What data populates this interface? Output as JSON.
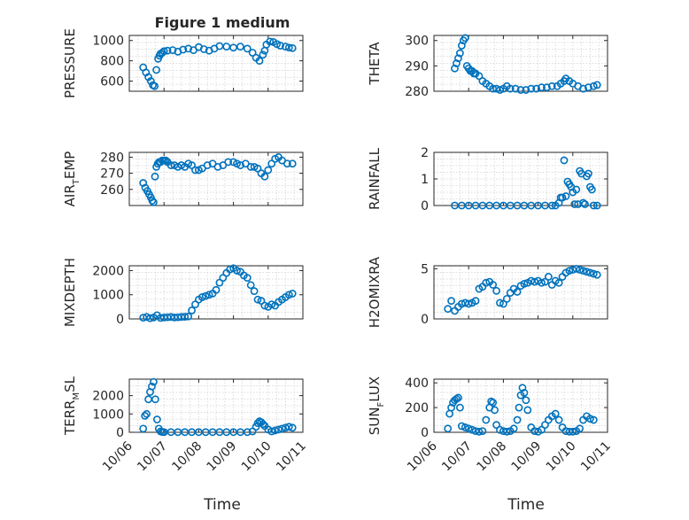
{
  "figure": {
    "title": "Figure 1 medium",
    "marker_color": "#0072BD",
    "xlabel": "Time"
  },
  "chart_data": [
    {
      "type": "scatter",
      "panel": "PRESSURE",
      "ylabel": "PRESSURE",
      "ylabel_sub": "",
      "ylim": [
        500,
        1050
      ],
      "yticks": [
        600,
        800,
        1000
      ],
      "ytick_labels": [
        "600",
        "800",
        "1000"
      ],
      "xlim": [
        0,
        5
      ],
      "xticks": [
        0,
        1,
        2,
        3,
        4,
        5
      ],
      "xtick_labels": [
        "10/06",
        "10/07",
        "10/08",
        "10/09",
        "10/10",
        "10/11"
      ],
      "show_xticklabels": false,
      "title": "Figure 1 medium",
      "x": [
        0.4,
        0.48,
        0.55,
        0.62,
        0.68,
        0.73,
        0.78,
        0.83,
        0.87,
        0.9,
        0.95,
        1.0,
        1.1,
        1.25,
        1.4,
        1.55,
        1.7,
        1.85,
        2.0,
        2.15,
        2.3,
        2.45,
        2.6,
        2.8,
        3.0,
        3.2,
        3.4,
        3.55,
        3.65,
        3.75,
        3.85,
        3.9,
        3.95,
        4.05,
        4.15,
        4.25,
        4.35,
        4.5,
        4.6,
        4.7
      ],
      "y": [
        735,
        685,
        640,
        600,
        560,
        550,
        710,
        820,
        850,
        870,
        880,
        895,
        900,
        905,
        890,
        910,
        920,
        905,
        935,
        915,
        900,
        920,
        945,
        940,
        930,
        940,
        920,
        880,
        830,
        800,
        860,
        900,
        960,
        990,
        985,
        965,
        950,
        940,
        930,
        925
      ]
    },
    {
      "type": "scatter",
      "panel": "THETA",
      "ylabel": "THETA",
      "ylabel_sub": "",
      "ylim": [
        280,
        302
      ],
      "yticks": [
        280,
        290,
        300
      ],
      "ytick_labels": [
        "280",
        "290",
        "300"
      ],
      "xlim": [
        0,
        5
      ],
      "xticks": [
        0,
        1,
        2,
        3,
        4,
        5
      ],
      "xtick_labels": [
        "10/06",
        "10/07",
        "10/08",
        "10/09",
        "10/10",
        "10/11"
      ],
      "show_xticklabels": false,
      "x": [
        0.6,
        0.65,
        0.7,
        0.75,
        0.8,
        0.85,
        0.9,
        0.95,
        1.0,
        1.05,
        1.1,
        1.15,
        1.2,
        1.3,
        1.4,
        1.5,
        1.6,
        1.7,
        1.8,
        1.9,
        2.0,
        2.1,
        2.2,
        2.35,
        2.5,
        2.65,
        2.8,
        2.95,
        3.1,
        3.25,
        3.4,
        3.55,
        3.65,
        3.75,
        3.8,
        3.9,
        4.0,
        4.15,
        4.3,
        4.45,
        4.6,
        4.7
      ],
      "y": [
        289,
        291,
        293,
        295,
        298,
        300,
        301,
        290,
        289,
        288,
        288,
        287,
        287,
        286,
        284,
        283,
        282,
        281,
        281,
        280.5,
        281,
        282,
        281,
        281,
        280.5,
        280.5,
        281,
        281,
        281.5,
        281.5,
        282,
        282,
        283,
        284,
        285,
        284,
        283,
        282,
        281,
        281.5,
        282,
        282.5
      ]
    },
    {
      "type": "scatter",
      "panel": "AIR_TEMP",
      "ylabel": "AIR",
      "ylabel_sub": "T",
      "ylabel_tail": "EMP",
      "ylim": [
        250,
        283
      ],
      "yticks": [
        260,
        270,
        280
      ],
      "ytick_labels": [
        "260",
        "270",
        "280"
      ],
      "xlim": [
        0,
        5
      ],
      "xticks": [
        0,
        1,
        2,
        3,
        4,
        5
      ],
      "xtick_labels": [
        "10/06",
        "10/07",
        "10/08",
        "10/09",
        "10/10",
        "10/11"
      ],
      "show_xticklabels": false,
      "x": [
        0.4,
        0.46,
        0.52,
        0.57,
        0.62,
        0.66,
        0.7,
        0.74,
        0.78,
        0.82,
        0.86,
        0.9,
        0.95,
        1.0,
        1.05,
        1.1,
        1.2,
        1.3,
        1.4,
        1.5,
        1.6,
        1.7,
        1.8,
        1.9,
        2.0,
        2.1,
        2.25,
        2.4,
        2.55,
        2.7,
        2.85,
        3.0,
        3.1,
        3.2,
        3.35,
        3.5,
        3.6,
        3.7,
        3.8,
        3.9,
        4.0,
        4.1,
        4.2,
        4.3,
        4.4,
        4.55,
        4.7
      ],
      "y": [
        264,
        261,
        259,
        257,
        255,
        253,
        252,
        268,
        274,
        276,
        277,
        277,
        278,
        278,
        278,
        277,
        275,
        275,
        274,
        275,
        274,
        276,
        275,
        272,
        272,
        273,
        275,
        276,
        274,
        275,
        277,
        277,
        276,
        275,
        276,
        274,
        274,
        273,
        270,
        268,
        272,
        276,
        279,
        280,
        278,
        276,
        276
      ]
    },
    {
      "type": "scatter",
      "panel": "RAINFALL",
      "ylabel": "RAINFALL",
      "ylabel_sub": "",
      "ylim": [
        0,
        2
      ],
      "yticks": [
        0,
        1,
        2
      ],
      "ytick_labels": [
        "0",
        "1",
        "2"
      ],
      "xlim": [
        0,
        5
      ],
      "xticks": [
        0,
        1,
        2,
        3,
        4,
        5
      ],
      "xtick_labels": [
        "10/06",
        "10/07",
        "10/08",
        "10/09",
        "10/10",
        "10/11"
      ],
      "show_xticklabels": false,
      "x": [
        0.6,
        0.8,
        1.0,
        1.2,
        1.4,
        1.6,
        1.8,
        2.0,
        2.2,
        2.4,
        2.6,
        2.8,
        3.0,
        3.2,
        3.4,
        3.5,
        3.6,
        3.65,
        3.7,
        3.75,
        3.8,
        3.85,
        3.9,
        3.95,
        4.0,
        4.05,
        4.1,
        4.15,
        4.2,
        4.25,
        4.3,
        4.35,
        4.4,
        4.45,
        4.5,
        4.55,
        4.6,
        4.7
      ],
      "y": [
        0,
        0,
        0,
        0,
        0,
        0,
        0,
        0,
        0,
        0,
        0,
        0,
        0,
        0,
        0,
        0,
        0.1,
        0.3,
        0.3,
        1.7,
        0.35,
        0.9,
        0.8,
        0.7,
        0.5,
        0.05,
        0.6,
        0.05,
        1.3,
        1.2,
        0.1,
        0.05,
        1.1,
        1.2,
        0.7,
        0.6,
        0,
        0
      ]
    },
    {
      "type": "scatter",
      "panel": "MIXDEPTH",
      "ylabel": "MIXDEPTH",
      "ylabel_sub": "",
      "ylim": [
        0,
        2200
      ],
      "yticks": [
        0,
        1000,
        2000
      ],
      "ytick_labels": [
        "0",
        "1000",
        "2000"
      ],
      "xlim": [
        0,
        5
      ],
      "xticks": [
        0,
        1,
        2,
        3,
        4,
        5
      ],
      "xtick_labels": [
        "10/06",
        "10/07",
        "10/08",
        "10/09",
        "10/10",
        "10/11"
      ],
      "show_xticklabels": false,
      "x": [
        0.4,
        0.5,
        0.6,
        0.7,
        0.8,
        0.9,
        1.0,
        1.1,
        1.2,
        1.3,
        1.4,
        1.5,
        1.6,
        1.7,
        1.8,
        1.9,
        2.0,
        2.1,
        2.2,
        2.3,
        2.4,
        2.5,
        2.6,
        2.7,
        2.8,
        2.9,
        3.0,
        3.1,
        3.2,
        3.3,
        3.4,
        3.5,
        3.6,
        3.7,
        3.8,
        3.9,
        4.0,
        4.1,
        4.2,
        4.3,
        4.4,
        4.5,
        4.6,
        4.7
      ],
      "y": [
        50,
        80,
        30,
        60,
        150,
        40,
        60,
        70,
        80,
        60,
        70,
        80,
        90,
        100,
        350,
        600,
        800,
        900,
        950,
        1000,
        1050,
        1200,
        1500,
        1700,
        1900,
        2050,
        2100,
        2000,
        1950,
        1800,
        1700,
        1400,
        1150,
        800,
        750,
        550,
        500,
        600,
        550,
        700,
        800,
        900,
        1000,
        1050
      ]
    },
    {
      "type": "scatter",
      "panel": "H2OMIXRA",
      "ylabel": "H2OMIXRA",
      "ylabel_sub": "",
      "ylim": [
        0,
        5.3
      ],
      "yticks": [
        0,
        5
      ],
      "ytick_labels": [
        "0",
        "5"
      ],
      "xlim": [
        0,
        5
      ],
      "xticks": [
        0,
        1,
        2,
        3,
        4,
        5
      ],
      "xtick_labels": [
        "10/06",
        "10/07",
        "10/08",
        "10/09",
        "10/10",
        "10/11"
      ],
      "show_xticklabels": false,
      "x": [
        0.4,
        0.5,
        0.6,
        0.7,
        0.8,
        0.9,
        1.0,
        1.1,
        1.2,
        1.3,
        1.4,
        1.5,
        1.6,
        1.7,
        1.8,
        1.9,
        2.0,
        2.1,
        2.2,
        2.3,
        2.4,
        2.5,
        2.6,
        2.7,
        2.8,
        2.9,
        3.0,
        3.1,
        3.2,
        3.3,
        3.4,
        3.5,
        3.6,
        3.7,
        3.8,
        3.9,
        4.0,
        4.1,
        4.2,
        4.3,
        4.4,
        4.5,
        4.6,
        4.7
      ],
      "y": [
        1.0,
        1.8,
        0.8,
        1.2,
        1.5,
        1.6,
        1.5,
        1.6,
        1.8,
        3.0,
        3.2,
        3.6,
        3.7,
        3.4,
        2.8,
        1.6,
        1.5,
        2.0,
        2.6,
        3.0,
        2.7,
        3.3,
        3.5,
        3.6,
        3.8,
        3.7,
        3.8,
        3.6,
        3.7,
        4.2,
        3.4,
        3.8,
        3.6,
        4.2,
        4.6,
        4.8,
        4.9,
        5.0,
        4.9,
        4.8,
        4.7,
        4.6,
        4.5,
        4.4
      ]
    },
    {
      "type": "scatter",
      "panel": "TERR_MSL",
      "ylabel": "TERR",
      "ylabel_sub": "M",
      "ylabel_tail": "SL",
      "ylim": [
        0,
        2900
      ],
      "yticks": [
        0,
        1000,
        2000
      ],
      "ytick_labels": [
        "0",
        "1000",
        "2000"
      ],
      "xlim": [
        0,
        5
      ],
      "xticks": [
        0,
        1,
        2,
        3,
        4,
        5
      ],
      "xtick_labels": [
        "10/06",
        "10/07",
        "10/08",
        "10/09",
        "10/10",
        "10/11"
      ],
      "show_xticklabels": true,
      "x": [
        0.4,
        0.45,
        0.5,
        0.55,
        0.6,
        0.65,
        0.7,
        0.75,
        0.8,
        0.85,
        0.9,
        0.95,
        1.0,
        1.2,
        1.4,
        1.6,
        1.8,
        2.0,
        2.2,
        2.4,
        2.6,
        2.8,
        3.0,
        3.2,
        3.4,
        3.55,
        3.65,
        3.7,
        3.75,
        3.8,
        3.85,
        3.9,
        4.0,
        4.1,
        4.2,
        4.3,
        4.4,
        4.5,
        4.6,
        4.7
      ],
      "y": [
        200,
        900,
        1000,
        1800,
        2200,
        2500,
        2750,
        1800,
        700,
        200,
        50,
        20,
        10,
        10,
        10,
        10,
        10,
        10,
        10,
        10,
        10,
        10,
        10,
        10,
        10,
        50,
        300,
        500,
        600,
        550,
        450,
        350,
        150,
        50,
        100,
        150,
        200,
        250,
        300,
        250
      ]
    },
    {
      "type": "scatter",
      "panel": "SUN_FLUX",
      "ylabel": "SUN",
      "ylabel_sub": "F",
      "ylabel_tail": "LUX",
      "ylim": [
        0,
        430
      ],
      "yticks": [
        0,
        200,
        400
      ],
      "ytick_labels": [
        "0",
        "200",
        "400"
      ],
      "xlim": [
        0,
        5
      ],
      "xticks": [
        0,
        1,
        2,
        3,
        4,
        5
      ],
      "xtick_labels": [
        "10/06",
        "10/07",
        "10/08",
        "10/09",
        "10/10",
        "10/11"
      ],
      "show_xticklabels": true,
      "x": [
        0.4,
        0.45,
        0.5,
        0.55,
        0.6,
        0.65,
        0.7,
        0.75,
        0.8,
        0.9,
        1.0,
        1.1,
        1.2,
        1.3,
        1.4,
        1.5,
        1.6,
        1.65,
        1.7,
        1.75,
        1.8,
        1.9,
        2.0,
        2.1,
        2.2,
        2.3,
        2.4,
        2.45,
        2.5,
        2.55,
        2.6,
        2.65,
        2.7,
        2.8,
        2.9,
        3.0,
        3.1,
        3.2,
        3.3,
        3.4,
        3.5,
        3.6,
        3.7,
        3.8,
        3.9,
        4.0,
        4.1,
        4.2,
        4.3,
        4.4,
        4.5,
        4.6
      ],
      "y": [
        30,
        150,
        200,
        240,
        260,
        270,
        280,
        200,
        50,
        40,
        30,
        20,
        10,
        5,
        10,
        100,
        200,
        250,
        240,
        180,
        60,
        20,
        10,
        5,
        10,
        30,
        100,
        200,
        300,
        360,
        320,
        260,
        180,
        40,
        10,
        5,
        20,
        60,
        100,
        130,
        150,
        100,
        40,
        10,
        5,
        5,
        10,
        30,
        100,
        130,
        110,
        100
      ]
    }
  ]
}
